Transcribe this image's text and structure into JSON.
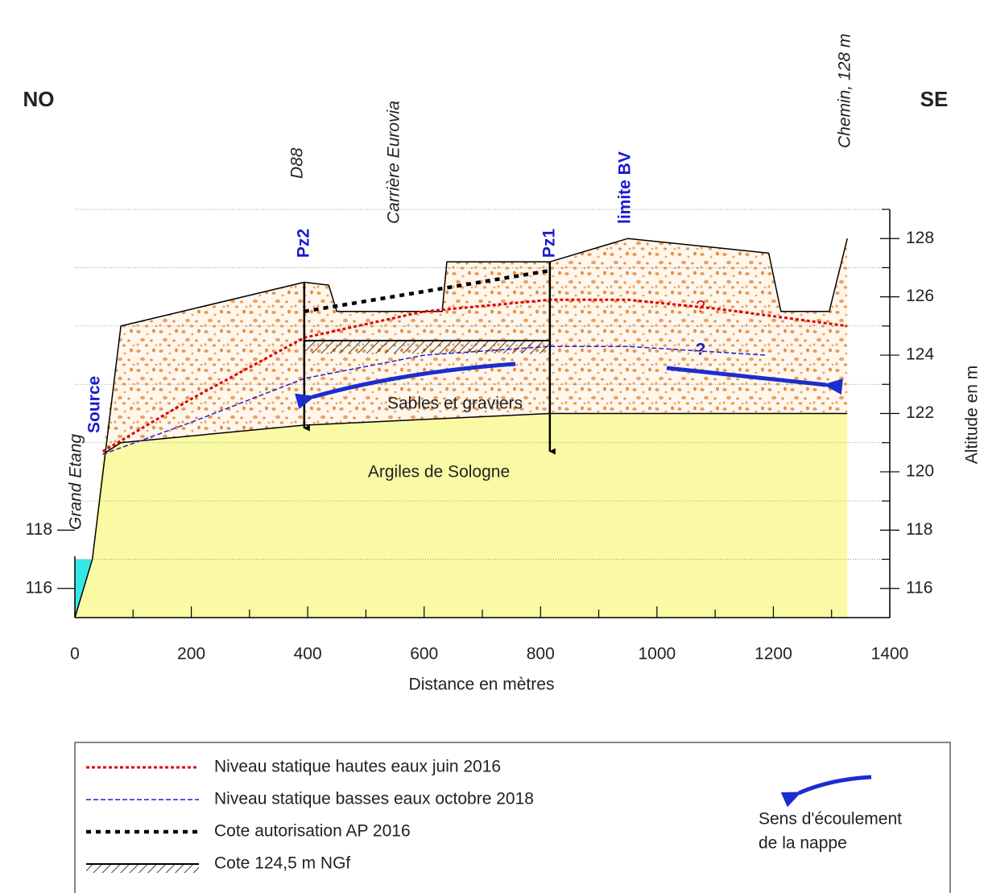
{
  "chart_data": {
    "type": "line",
    "xlabel": "Distance en mètres",
    "ylabel": "Altitude en m",
    "xlim": [
      0,
      1400
    ],
    "ylim": [
      115,
      129
    ],
    "xticks": [
      0,
      200,
      400,
      600,
      800,
      1000,
      1200,
      1400
    ],
    "xminor": [
      100,
      300,
      500,
      700,
      900,
      1100,
      1300
    ],
    "yticks": [
      116,
      118,
      120,
      122,
      124,
      126,
      128
    ],
    "yminor": [
      117,
      119,
      121,
      123,
      125,
      127,
      129
    ],
    "left_yticks": [
      116,
      118
    ],
    "grid": true,
    "labels": {
      "no": "NO",
      "se": "SE",
      "d88": "D88",
      "carriere": "Carrière Eurovia",
      "chemin": "Chemin, 128 m",
      "limite": "limite BV",
      "source": "Source",
      "etang": "Grand Etang",
      "sables": "Sables et graviers",
      "argiles": "Argiles de Sologne",
      "q_red": "?",
      "q_blue": "?",
      "flow_1": "Sens d'écoulement",
      "flow_2": "de la nappe"
    },
    "wells": [
      {
        "label": "Pz2",
        "x": 394,
        "top": 126.5,
        "bottom": 121.5
      },
      {
        "label": "Pz1",
        "x": 816,
        "top": 127.2,
        "bottom": 120.7
      }
    ],
    "series": [
      {
        "color": "#000000",
        "x": [
          0,
          30,
          79,
          394,
          436,
          450,
          631,
          639,
          816,
          950,
          1192,
          1213,
          1296,
          1327
        ],
        "values": [
          115,
          117,
          125,
          126.5,
          126.4,
          125.5,
          125.5,
          127.2,
          127.2,
          128,
          127.5,
          125.5,
          125.5,
          128
        ]
      },
      {
        "color": "#000000",
        "x": [
          48,
          79,
          394,
          816,
          1327
        ],
        "values": [
          120.6,
          121.0,
          121.6,
          122,
          122
        ]
      },
      {
        "name": "Niveau statique hautes eaux juin 2016",
        "color": "#e00000",
        "dash": "4,3",
        "width": 3,
        "x": [
          48,
          200,
          394,
          600,
          816,
          950,
          1100,
          1327
        ],
        "values": [
          120.7,
          122.5,
          124.6,
          125.5,
          125.9,
          125.9,
          125.6,
          125.0
        ]
      },
      {
        "name": "Niveau statique basses eaux octobre 2018",
        "color": "#2020d0",
        "dash": "6,3",
        "width": 1.5,
        "x": [
          48,
          200,
          394,
          600,
          816,
          950,
          1186
        ],
        "values": [
          120.6,
          121.7,
          123.2,
          124.0,
          124.3,
          124.3,
          124.0
        ]
      },
      {
        "name": "Cote autorisation AP 2016",
        "color": "#000000",
        "dash": "6,6",
        "width": 4.5,
        "x": [
          394,
          816
        ],
        "values": [
          125.5,
          126.9
        ]
      },
      {
        "name": "Cote 124,5 m NGf",
        "color": "#000000",
        "width": 2,
        "hatch": true,
        "x": [
          394,
          816
        ],
        "values": [
          124.5,
          124.5
        ]
      }
    ]
  }
}
